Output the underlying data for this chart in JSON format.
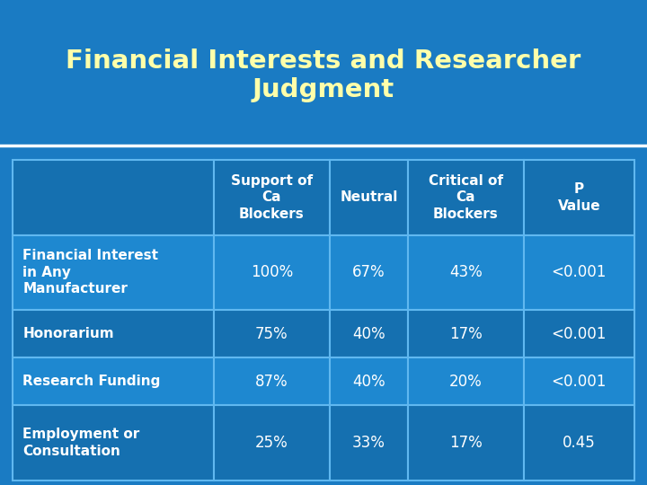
{
  "title": "Financial Interests and Researcher\nJudgment",
  "title_color": "#FFFFAA",
  "bg_color": "#1A7BC3",
  "cell_bg_alt1": "#1570B0",
  "cell_bg_alt2": "#1E88D0",
  "border_color": "#60B8F0",
  "text_color_white": "#FFFFFF",
  "col_headers": [
    "Support of\nCa\nBlockers",
    "Neutral",
    "Critical of\nCa\nBlockers",
    "P\nValue"
  ],
  "row_labels": [
    "Financial Interest\nin Any\nManufacturer",
    "Honorarium",
    "Research Funding",
    "Employment or\nConsultation"
  ],
  "data": [
    [
      "100%",
      "67%",
      "43%",
      "<0.001"
    ],
    [
      "75%",
      "40%",
      "17%",
      "<0.001"
    ],
    [
      "87%",
      "40%",
      "20%",
      "<0.001"
    ],
    [
      "25%",
      "33%",
      "17%",
      "0.45"
    ]
  ],
  "figsize": [
    7.2,
    5.4
  ],
  "dpi": 100
}
